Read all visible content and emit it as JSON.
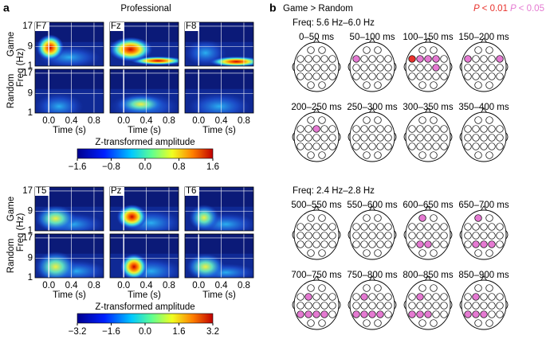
{
  "panel_a": {
    "label": "a",
    "title": "Professional",
    "freq_label": "Freq (Hz)",
    "row_labels": [
      "Game",
      "Random"
    ],
    "freq_ticks": [
      "17",
      "9",
      "1"
    ],
    "time_ticks": [
      "0.0",
      "0.4",
      "0.8"
    ],
    "time_label": "Time (s)",
    "groups": [
      {
        "channels": [
          "F7",
          "Fz",
          "F8"
        ],
        "colorbar": {
          "title": "Z-transformed amplitude",
          "ticks": [
            "−1.6",
            "−0.8",
            "0.0",
            "0.8",
            "1.6"
          ]
        }
      },
      {
        "channels": [
          "T5",
          "Pz",
          "T6"
        ],
        "colorbar": {
          "title": "Z-transformed amplitude",
          "ticks": [
            "−3.2",
            "−1.6",
            "0.0",
            "1.6",
            "3.2"
          ]
        }
      }
    ]
  },
  "panel_b": {
    "label": "b",
    "title": "Game > Random",
    "legend": [
      {
        "italic": "P",
        "text": "< 0.01",
        "color": "#e8312b"
      },
      {
        "italic": "P",
        "text": "< 0.05",
        "color": "#e57ad2"
      }
    ],
    "sections": [
      {
        "freq": "Freq: 5.6 Hz–6.0 Hz",
        "windows": [
          "0–50 ms",
          "50–100 ms",
          "100–150 ms",
          "150–200 ms",
          "200–250 ms",
          "250–300 ms",
          "300–350 ms",
          "350–400 ms"
        ]
      },
      {
        "freq": "Freq: 2.4 Hz–2.8 Hz",
        "windows": [
          "500–550 ms",
          "550–600 ms",
          "600–650 ms",
          "650–700 ms",
          "700–750 ms",
          "750–800 ms",
          "800–850 ms",
          "850–900 ms"
        ]
      }
    ]
  }
}
